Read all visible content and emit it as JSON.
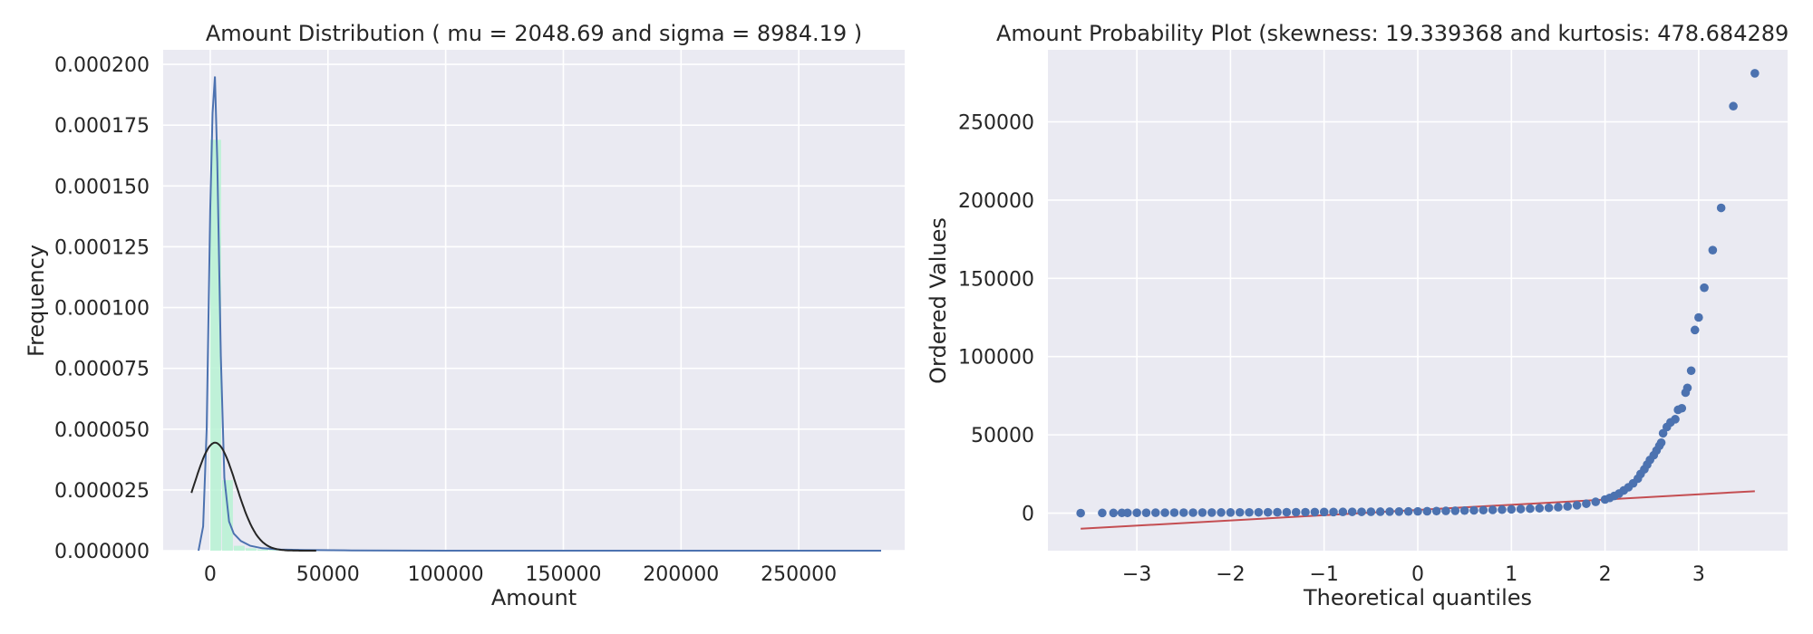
{
  "chart_data": [
    {
      "type": "histogram",
      "title": "Amount Distribution ( mu = 2048.69 and sigma = 8984.19 )",
      "xlabel": "Amount",
      "ylabel": "Frequency",
      "xlim": [
        -20000,
        295000
      ],
      "ylim": [
        0,
        0.000206
      ],
      "xticks": [
        0,
        50000,
        100000,
        150000,
        200000,
        250000
      ],
      "yticks": [
        0.0,
        2.5e-05,
        5e-05,
        7.5e-05,
        0.0001,
        0.000125,
        0.00015,
        0.000175,
        0.0002
      ],
      "xtick_labels": [
        "0",
        "50000",
        "100000",
        "150000",
        "200000",
        "250000"
      ],
      "ytick_labels": [
        "0.000000",
        "0.000025",
        "0.000050",
        "0.000075",
        "0.000100",
        "0.000125",
        "0.000150",
        "0.000175",
        "0.000200"
      ],
      "grid": true,
      "bars": {
        "color": "#b7f2d3",
        "bin_edges": [
          0,
          5000,
          10000,
          15000,
          20000,
          25000,
          30000
        ],
        "values": [
          0.000169,
          2.9e-05,
          2e-06,
          1e-06,
          5e-07,
          3e-07
        ]
      },
      "kde": {
        "color": "#4c72b0",
        "x": [
          -5000,
          -3000,
          -1500,
          0,
          1000,
          2000,
          3000,
          4500,
          6000,
          8000,
          10000,
          13000,
          17000,
          22000,
          30000,
          40000,
          60000,
          100000,
          200000,
          285000
        ],
        "y": [
          0.0,
          1e-05,
          5e-05,
          0.00014,
          0.00018,
          0.000195,
          0.00016,
          8e-05,
          3e-05,
          1.2e-05,
          7e-06,
          4e-06,
          2e-06,
          1e-06,
          5e-07,
          3e-07,
          1e-07,
          0.0,
          0.0,
          0.0
        ]
      },
      "normal_fit": {
        "color": "#262626",
        "mu": 2048.69,
        "sigma": 8984.19,
        "x_range": [
          -8000,
          45000
        ]
      }
    },
    {
      "type": "scatter",
      "title": "Amount Probability Plot (skewness: 19.339368 and kurtosis: 478.684289",
      "xlabel": "Theoretical quantiles",
      "ylabel": "Ordered Values",
      "xlim": [
        -3.95,
        3.95
      ],
      "ylim": [
        -24000,
        296000
      ],
      "xticks": [
        -3,
        -2,
        -1,
        0,
        1,
        2,
        3
      ],
      "yticks": [
        0,
        50000,
        100000,
        150000,
        200000,
        250000
      ],
      "xtick_labels": [
        "−3",
        "−2",
        "−1",
        "0",
        "1",
        "2",
        "3"
      ],
      "ytick_labels": [
        "0",
        "50000",
        "100000",
        "150000",
        "200000",
        "250000"
      ],
      "grid": true,
      "points_color": "#4c72b0",
      "fit_line": {
        "color": "#c44e52",
        "x": [
          -3.6,
          3.6
        ],
        "y": [
          -10000,
          14000
        ]
      },
      "points": [
        [
          -3.6,
          0
        ],
        [
          -3.37,
          100
        ],
        [
          -3.25,
          100
        ],
        [
          -3.16,
          150
        ],
        [
          -3.1,
          150
        ],
        [
          -3.0,
          200
        ],
        [
          -2.9,
          200
        ],
        [
          -2.8,
          250
        ],
        [
          -2.7,
          250
        ],
        [
          -2.6,
          300
        ],
        [
          -2.5,
          300
        ],
        [
          -2.4,
          300
        ],
        [
          -2.3,
          350
        ],
        [
          -2.2,
          350
        ],
        [
          -2.1,
          400
        ],
        [
          -2.0,
          400
        ],
        [
          -1.9,
          450
        ],
        [
          -1.8,
          450
        ],
        [
          -1.7,
          500
        ],
        [
          -1.6,
          500
        ],
        [
          -1.5,
          550
        ],
        [
          -1.4,
          550
        ],
        [
          -1.3,
          600
        ],
        [
          -1.2,
          600
        ],
        [
          -1.1,
          650
        ],
        [
          -1.0,
          700
        ],
        [
          -0.9,
          700
        ],
        [
          -0.8,
          750
        ],
        [
          -0.7,
          800
        ],
        [
          -0.6,
          800
        ],
        [
          -0.5,
          850
        ],
        [
          -0.4,
          900
        ],
        [
          -0.3,
          950
        ],
        [
          -0.2,
          1000
        ],
        [
          -0.1,
          1050
        ],
        [
          0.0,
          1100
        ],
        [
          0.1,
          1200
        ],
        [
          0.2,
          1300
        ],
        [
          0.3,
          1400
        ],
        [
          0.4,
          1500
        ],
        [
          0.5,
          1600
        ],
        [
          0.6,
          1750
        ],
        [
          0.7,
          1900
        ],
        [
          0.8,
          2050
        ],
        [
          0.9,
          2200
        ],
        [
          1.0,
          2400
        ],
        [
          1.1,
          2600
        ],
        [
          1.2,
          2850
        ],
        [
          1.3,
          3100
        ],
        [
          1.4,
          3400
        ],
        [
          1.5,
          3800
        ],
        [
          1.6,
          4300
        ],
        [
          1.7,
          5000
        ],
        [
          1.8,
          6000
        ],
        [
          1.9,
          7200
        ],
        [
          2.0,
          8700
        ],
        [
          2.05,
          9700
        ],
        [
          2.1,
          11000
        ],
        [
          2.15,
          12500
        ],
        [
          2.2,
          14500
        ],
        [
          2.25,
          16500
        ],
        [
          2.3,
          19000
        ],
        [
          2.35,
          22000
        ],
        [
          2.38,
          25000
        ],
        [
          2.42,
          28000
        ],
        [
          2.45,
          31000
        ],
        [
          2.48,
          34000
        ],
        [
          2.52,
          37000
        ],
        [
          2.55,
          40000
        ],
        [
          2.58,
          43000
        ],
        [
          2.6,
          45000
        ],
        [
          2.62,
          51000
        ],
        [
          2.66,
          55000
        ],
        [
          2.7,
          58000
        ],
        [
          2.75,
          60000
        ],
        [
          2.78,
          66000
        ],
        [
          2.82,
          67000
        ],
        [
          2.86,
          77000
        ],
        [
          2.88,
          80000
        ],
        [
          2.92,
          91000
        ],
        [
          2.96,
          117000
        ],
        [
          3.0,
          125000
        ],
        [
          3.06,
          144000
        ],
        [
          3.15,
          168000
        ],
        [
          3.24,
          195000
        ],
        [
          3.37,
          260000
        ],
        [
          3.6,
          281000
        ]
      ]
    }
  ]
}
